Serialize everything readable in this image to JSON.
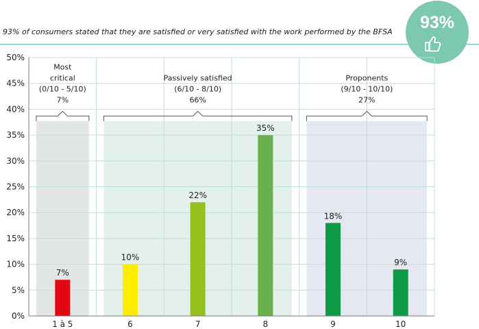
{
  "caption": "93% of consumers stated that they are satisfied or very satisfied with the work performed by the BFSA",
  "badge": {
    "value": "93%",
    "icon": "thumbs-up-icon",
    "color": "#7cc8b0"
  },
  "colors": {
    "grid": "#bfe0d6",
    "axis": "#7a7a7a"
  },
  "chart_data": {
    "type": "bar",
    "categories": [
      "1 à 5",
      "6",
      "7",
      "8",
      "9",
      "10"
    ],
    "values": [
      7,
      10,
      22,
      35,
      18,
      9
    ],
    "data_labels": [
      "7%",
      "10%",
      "22%",
      "35%",
      "18%",
      "9%"
    ],
    "bar_colors": [
      "#e30613",
      "#ffed00",
      "#95c11f",
      "#6ab04c",
      "#0f9a47",
      "#0f9a47"
    ],
    "ylim": [
      0,
      50
    ],
    "yticks": [
      "0%",
      "5%",
      "10%",
      "15%",
      "20%",
      "25%",
      "30%",
      "35%",
      "40%",
      "45%",
      "50%"
    ],
    "grid": true,
    "groups": [
      {
        "lines": [
          "Most",
          "critical",
          "(0/10 - 5/10)",
          "7%"
        ],
        "categories": [
          "1 à 5"
        ],
        "color": "#e2e6e7"
      },
      {
        "lines": [
          "Passively satisfied",
          "(6/10 - 8/10)",
          "66%"
        ],
        "categories": [
          "6",
          "7",
          "8"
        ],
        "color": "#e3f1ea"
      },
      {
        "lines": [
          "Proponents",
          "(9/10 - 10/10)",
          "27%"
        ],
        "categories": [
          "9",
          "10"
        ],
        "color": "#e5e8f1"
      }
    ]
  }
}
